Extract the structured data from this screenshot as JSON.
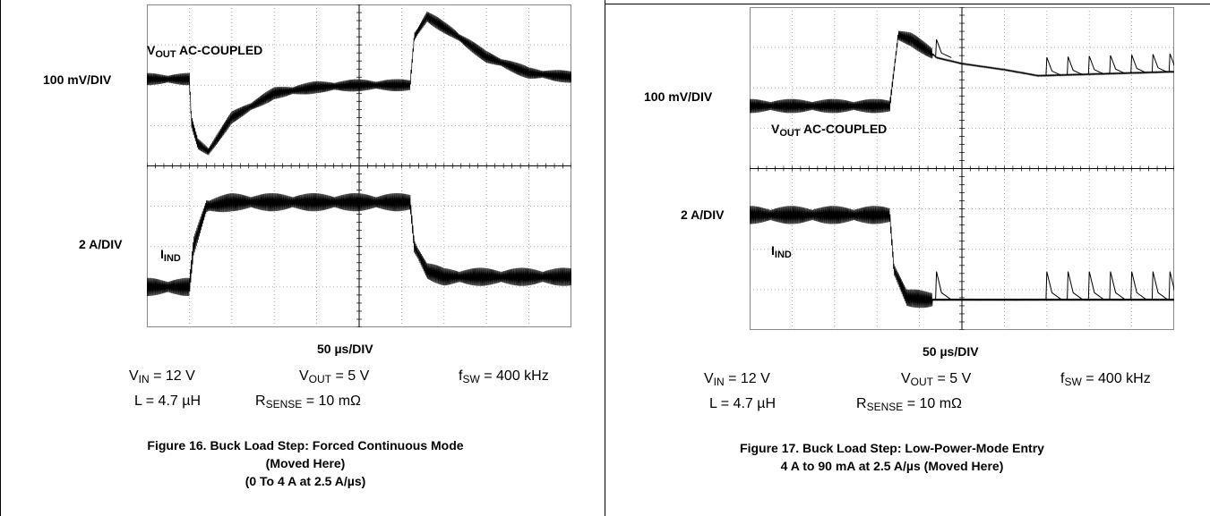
{
  "colors": {
    "trace": "#000000",
    "grid": "#000000",
    "background": "#ffffff"
  },
  "figures": [
    {
      "id": "fig16",
      "vout_label_main": "V",
      "vout_label_sub": "OUT",
      "vout_label_suffix": " AC-COUPLED",
      "vscale_label": "100 mV/DIV",
      "iscale_label": "2 A/DIV",
      "iind_main": "I",
      "iind_sub": "IND",
      "time_scale": "50 µs/DIV",
      "conditions": {
        "vin": {
          "main": "V",
          "sub": "IN",
          "rest": " = 12 V"
        },
        "vout": {
          "main": "V",
          "sub": "OUT",
          "rest": " = 5 V"
        },
        "fsw": {
          "main": "f",
          "sub": "SW",
          "rest": " = 400 kHz"
        },
        "l": {
          "main": "L = 4.7 µH"
        },
        "rsense": {
          "main": "R",
          "sub": "SENSE",
          "rest": " = 10 mΩ"
        }
      },
      "caption_lines": [
        "Figure 16. Buck Load Step: Forced Continuous Mode",
        "(Moved Here)",
        "(0 To 4 A at 2.5 A/µs)"
      ]
    },
    {
      "id": "fig17",
      "vout_label_main": "V",
      "vout_label_sub": "OUT",
      "vout_label_suffix": " AC-COUPLED",
      "vscale_label": "100 mV/DIV",
      "iscale_label": "2 A/DIV",
      "iind_main": "I",
      "iind_sub": "IND",
      "time_scale": "50 µs/DIV",
      "conditions": {
        "vin": {
          "main": "V",
          "sub": "IN",
          "rest": " = 12 V"
        },
        "vout": {
          "main": "V",
          "sub": "OUT",
          "rest": " = 5 V"
        },
        "fsw": {
          "main": "f",
          "sub": "SW",
          "rest": " = 400 kHz"
        },
        "l": {
          "main": "L = 4.7 µH"
        },
        "rsense": {
          "main": "R",
          "sub": "SENSE",
          "rest": " = 10 mΩ"
        }
      },
      "caption_lines": [
        "Figure 17. Buck Load Step: Low-Power-Mode Entry",
        "4 A to 90 mA at 2.5 A/µs (Moved Here)"
      ]
    }
  ],
  "chart_data": [
    {
      "type": "line",
      "title": "Figure 16. Buck Load Step: Forced Continuous Mode (Moved Here) (0 To 4 A at 2.5 A/µs)",
      "xlabel": "50 µs/DIV",
      "x_divisions": 10,
      "y_divisions": 8,
      "xlim": [
        0,
        10
      ],
      "series": [
        {
          "name": "VOUT AC-COUPLED",
          "scale": "100 mV/DIV",
          "center_div": 2.0,
          "ripple_div": 0.3,
          "x": [
            0,
            1.0,
            1.05,
            1.2,
            1.45,
            2.0,
            3.0,
            4.0,
            5.0,
            6.0,
            6.2,
            6.3,
            6.6,
            7.2,
            8.0,
            9.0,
            10.0
          ],
          "y": [
            2.15,
            2.15,
            1.1,
            0.55,
            0.35,
            1.2,
            1.8,
            1.95,
            2.0,
            2.0,
            2.0,
            3.2,
            3.7,
            3.3,
            2.7,
            2.3,
            2.2
          ]
        },
        {
          "name": "IND",
          "scale": "2 A/DIV",
          "center_div": -2.0,
          "ripple_div": 0.45,
          "x": [
            0,
            1.0,
            1.1,
            1.4,
            2.0,
            3.0,
            6.2,
            6.3,
            6.6,
            7.0,
            10.0
          ],
          "y": [
            -3.0,
            -3.0,
            -2.0,
            -1.0,
            -0.9,
            -0.9,
            -0.9,
            -2.0,
            -2.6,
            -2.75,
            -2.75
          ]
        }
      ]
    },
    {
      "type": "line",
      "title": "Figure 17. Buck Load Step: Low-Power-Mode Entry 4 A to 90 mA at 2.5 A/µs (Moved Here)",
      "xlabel": "50 µs/DIV",
      "x_divisions": 10,
      "y_divisions": 8,
      "xlim": [
        0,
        10
      ],
      "series": [
        {
          "name": "VOUT AC-COUPLED",
          "scale": "100 mV/DIV",
          "ripple_div": 0.35,
          "x": [
            0,
            3.3,
            3.5,
            3.8,
            4.3,
            4.4,
            5.0,
            6.0,
            6.8,
            10.0
          ],
          "y": [
            1.55,
            1.55,
            3.3,
            3.2,
            2.85,
            2.75,
            2.6,
            2.45,
            2.3,
            2.4
          ],
          "pulses_x": [
            4.4,
            7.0,
            7.5,
            8.0,
            8.5,
            9.0,
            9.5,
            9.9
          ]
        },
        {
          "name": "IND",
          "scale": "2 A/DIV",
          "ripple_div": 0.45,
          "x": [
            0,
            3.3,
            3.4,
            3.7,
            4.2,
            10.0
          ],
          "y": [
            -1.15,
            -1.15,
            -2.5,
            -3.2,
            -3.25,
            -3.25
          ],
          "pulses_x": [
            4.4,
            7.0,
            7.5,
            8.0,
            8.5,
            9.0,
            9.5,
            9.9
          ]
        }
      ]
    }
  ]
}
